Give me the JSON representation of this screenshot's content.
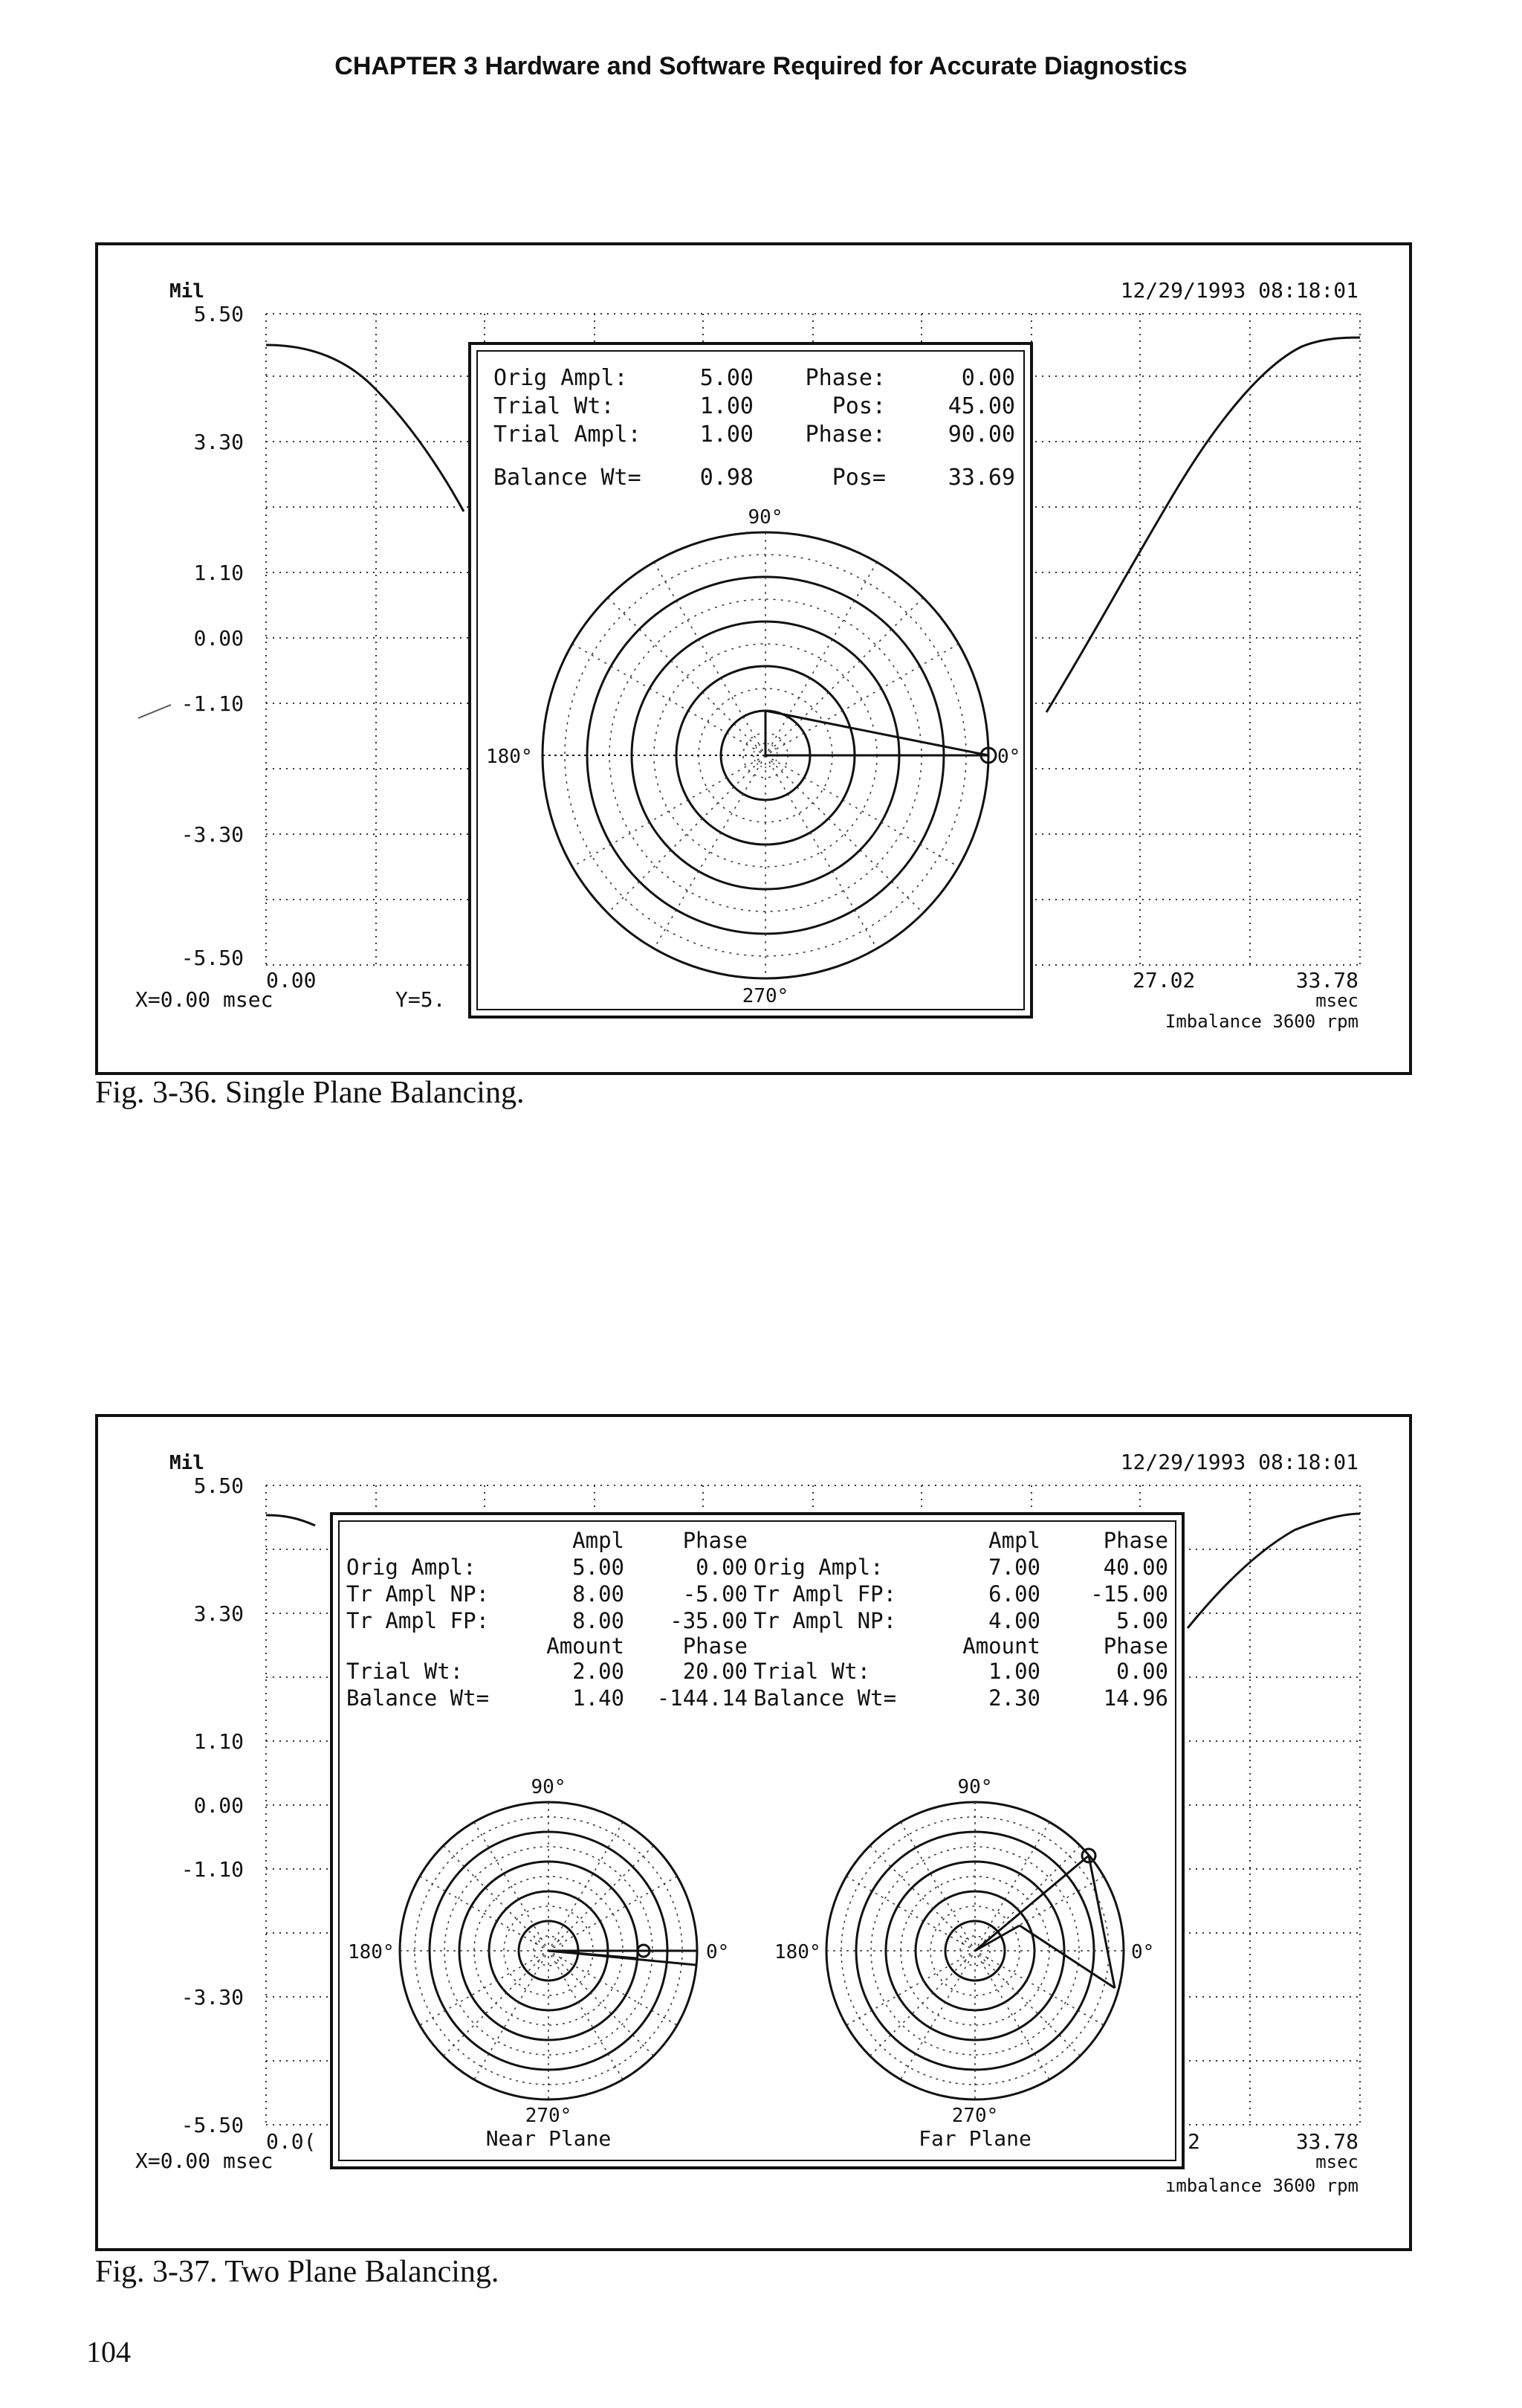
{
  "page": {
    "header": "CHAPTER 3  Hardware and Software Required for Accurate Diagnostics",
    "page_number": "104"
  },
  "fig1": {
    "caption": "Fig. 3-36.  Single Plane Balancing.",
    "unit": "Mil",
    "timestamp": "12/29/1993 08:18:01",
    "y_ticks": [
      "5.50",
      "3.30",
      "1.10",
      "0.00",
      "-1.10",
      "-3.30",
      "-5.50"
    ],
    "x_ticks": [
      "0.00",
      "27.02",
      "33.78"
    ],
    "x_unit": "msec",
    "x_readout": "X=0.00 msec",
    "y_readout": "Y=5.",
    "footer": "Imbalance 3600 rpm",
    "panel": {
      "rows": [
        {
          "label": "Orig  Ampl:",
          "value": "5.00",
          "label2": "Phase:",
          "value2": "0.00"
        },
        {
          "label": "Trial   Wt:",
          "value": "1.00",
          "label2": "Pos:",
          "value2": "45.00"
        },
        {
          "label": "Trial Ampl:",
          "value": "1.00",
          "label2": "Phase:",
          "value2": "90.00"
        },
        {
          "label": "Balance Wt=",
          "value": "0.98",
          "label2": "Pos=",
          "value2": "33.69"
        }
      ],
      "angles": {
        "top": "90°",
        "left": "180°",
        "right": "0°",
        "bottom": "270°"
      }
    }
  },
  "fig2": {
    "caption": "Fig. 3-37.  Two Plane Balancing.",
    "unit": "Mil",
    "timestamp": "12/29/1993 08:18:01",
    "y_ticks": [
      "5.50",
      "3.30",
      "1.10",
      "0.00",
      "-1.10",
      "-3.30",
      "-5.50"
    ],
    "x_ticks": [
      "0.0(",
      "2",
      "33.78"
    ],
    "x_unit": "msec",
    "x_readout": "X=0.00 msec",
    "footer": "ımbalance 3600 rpm",
    "panel": {
      "left_header": {
        "c1": "Ampl",
        "c2": "Phase"
      },
      "right_header": {
        "c1": "Ampl",
        "c2": "Phase"
      },
      "left_rows": [
        {
          "label": "Orig  Ampl:",
          "v1": "5.00",
          "v2": "0.00"
        },
        {
          "label": "Tr Ampl NP:",
          "v1": "8.00",
          "v2": "-5.00"
        },
        {
          "label": "Tr Ampl FP:",
          "v1": "8.00",
          "v2": "-35.00"
        }
      ],
      "right_rows": [
        {
          "label": "Orig  Ampl:",
          "v1": "7.00",
          "v2": "40.00"
        },
        {
          "label": "Tr Ampl FP:",
          "v1": "6.00",
          "v2": "-15.00"
        },
        {
          "label": "Tr Ampl NP:",
          "v1": "4.00",
          "v2": "5.00"
        }
      ],
      "left_amount_header": {
        "c1": "Amount",
        "c2": "Phase"
      },
      "right_amount_header": {
        "c1": "Amount",
        "c2": "Phase"
      },
      "left_rows2": [
        {
          "label": "Trial   Wt:",
          "v1": "2.00",
          "v2": "20.00"
        },
        {
          "label": "Balance Wt=",
          "v1": "1.40",
          "v2": "-144.14"
        }
      ],
      "right_rows2": [
        {
          "label": "Trial   Wt:",
          "v1": "1.00",
          "v2": "0.00"
        },
        {
          "label": "Balance Wt=",
          "v1": "2.30",
          "v2": "14.96"
        }
      ],
      "near": {
        "top": "90°",
        "left": "180°",
        "right": "0°",
        "bottom": "270°",
        "name": "Near Plane"
      },
      "far": {
        "top": "90°",
        "left": "180°",
        "right": "0°",
        "bottom": "270°",
        "name": "Far Plane"
      }
    }
  }
}
